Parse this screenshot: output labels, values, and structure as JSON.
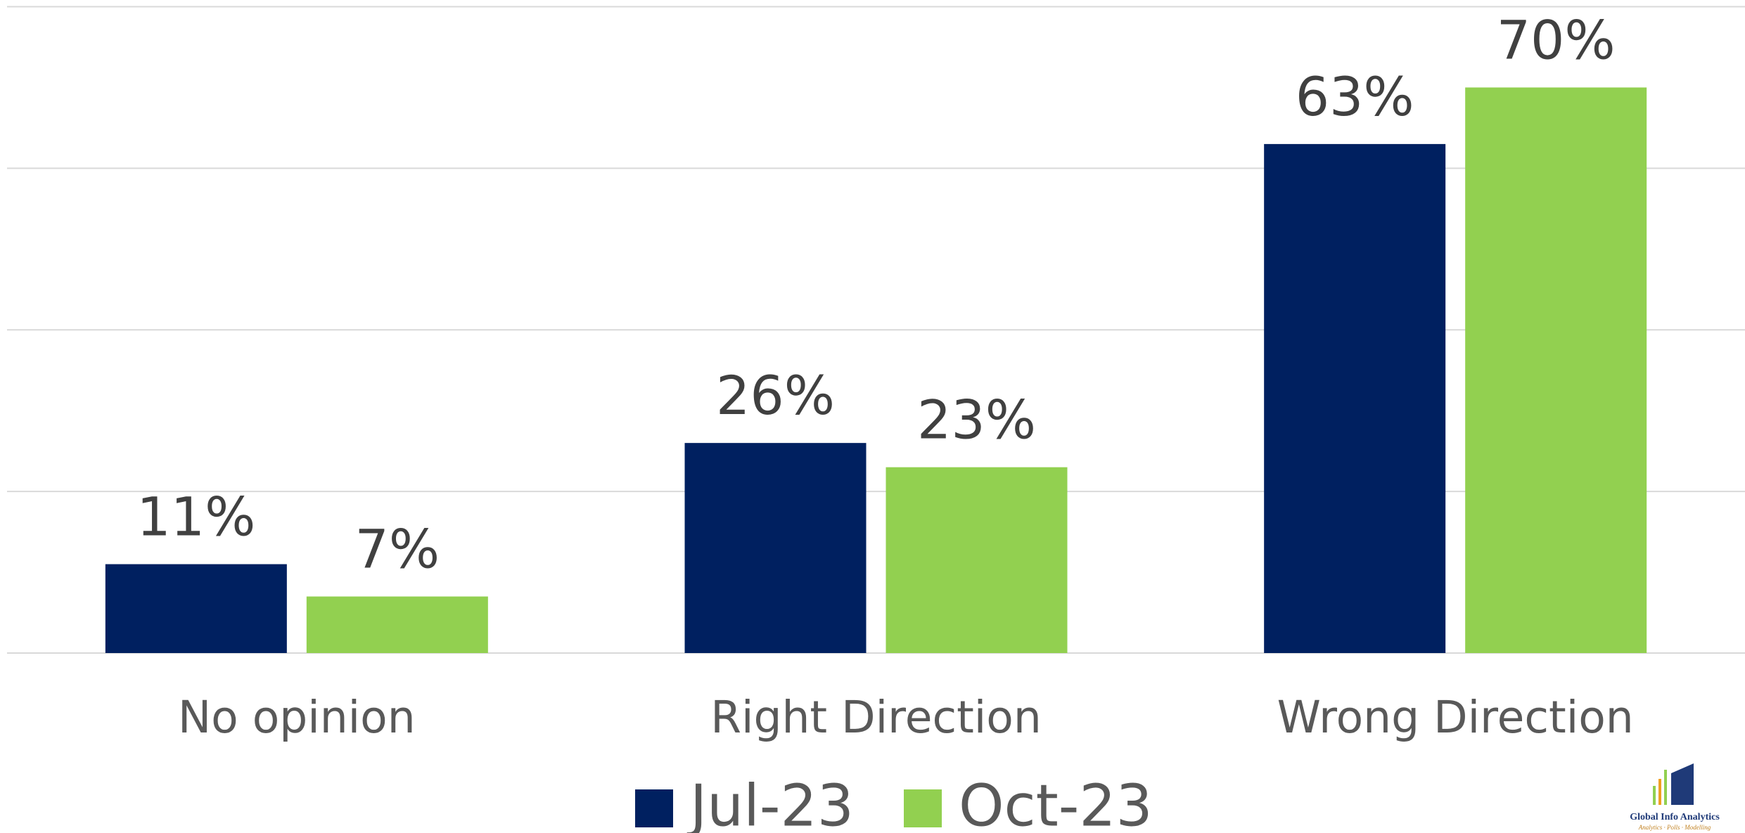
{
  "chart_data": {
    "type": "bar",
    "categories": [
      "No opinion",
      "Right Direction",
      "Wrong Direction"
    ],
    "series": [
      {
        "name": "Jul-23",
        "color": "#002060",
        "values": [
          11,
          26,
          63
        ],
        "value_labels": [
          "11%",
          "26%",
          "63%"
        ]
      },
      {
        "name": "Oct-23",
        "color": "#92d050",
        "values": [
          7,
          23,
          70
        ],
        "value_labels": [
          "7%",
          "23%",
          "70%"
        ]
      }
    ],
    "ylim": [
      0,
      80
    ],
    "yticks": [
      0,
      20,
      40,
      60,
      80
    ],
    "grid": true,
    "legend": "bottom"
  },
  "logo": {
    "name": "Global Info Analytics",
    "tagline": "Analytics · Polls · Modelling"
  }
}
